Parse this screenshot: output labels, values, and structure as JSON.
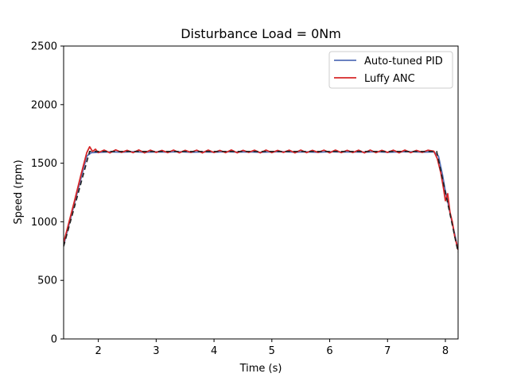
{
  "chart_data": {
    "type": "line",
    "title": "Disturbance Load = 0Nm",
    "xlabel": "Time (s)",
    "ylabel": "Speed (rpm)",
    "xlim": [
      1.4,
      8.22
    ],
    "ylim": [
      0,
      2500
    ],
    "xticks": [
      2,
      3,
      4,
      5,
      6,
      7,
      8
    ],
    "yticks": [
      0,
      500,
      1000,
      1500,
      2000,
      2500
    ],
    "grid": false,
    "legend_position": "top-right",
    "setpoint": {
      "x": [
        1.4,
        1.85,
        7.85,
        8.22
      ],
      "y": [
        790,
        1600,
        1600,
        740
      ]
    },
    "series": [
      {
        "name": "Auto-tuned PID",
        "color": "#5470b8",
        "x": [
          1.4,
          1.5,
          1.6,
          1.7,
          1.8,
          1.88,
          2.0,
          2.2,
          2.4,
          2.6,
          2.8,
          3.0,
          3.2,
          3.4,
          3.6,
          3.8,
          4.0,
          4.2,
          4.4,
          4.6,
          4.8,
          5.0,
          5.2,
          5.4,
          5.6,
          5.8,
          6.0,
          6.2,
          6.4,
          6.6,
          6.8,
          7.0,
          7.2,
          7.4,
          7.6,
          7.8,
          7.88,
          7.95,
          8.0,
          8.05,
          8.1,
          8.15,
          8.22
        ],
        "y": [
          800,
          990,
          1180,
          1370,
          1560,
          1590,
          1592,
          1597,
          1594,
          1598,
          1593,
          1597,
          1595,
          1598,
          1593,
          1597,
          1594,
          1598,
          1595,
          1597,
          1593,
          1596,
          1598,
          1594,
          1597,
          1593,
          1598,
          1595,
          1597,
          1594,
          1598,
          1593,
          1596,
          1598,
          1594,
          1597,
          1560,
          1400,
          1260,
          1150,
          1030,
          920,
          760
        ]
      },
      {
        "name": "Luffy ANC",
        "color": "#d62728",
        "x": [
          1.4,
          1.5,
          1.6,
          1.7,
          1.8,
          1.85,
          1.9,
          1.95,
          2.0,
          2.1,
          2.2,
          2.3,
          2.4,
          2.5,
          2.6,
          2.7,
          2.8,
          2.9,
          3.0,
          3.1,
          3.2,
          3.3,
          3.4,
          3.5,
          3.6,
          3.7,
          3.8,
          3.9,
          4.0,
          4.1,
          4.2,
          4.3,
          4.4,
          4.5,
          4.6,
          4.7,
          4.8,
          4.9,
          5.0,
          5.1,
          5.2,
          5.3,
          5.4,
          5.5,
          5.6,
          5.7,
          5.8,
          5.9,
          6.0,
          6.1,
          6.2,
          6.3,
          6.4,
          6.5,
          6.6,
          6.7,
          6.8,
          6.9,
          7.0,
          7.1,
          7.2,
          7.3,
          7.4,
          7.5,
          7.6,
          7.7,
          7.8,
          7.86,
          7.92,
          7.97,
          8.0,
          8.04,
          8.08,
          8.12,
          8.16,
          8.22
        ],
        "y": [
          820,
          1010,
          1200,
          1400,
          1590,
          1640,
          1600,
          1620,
          1590,
          1612,
          1588,
          1614,
          1592,
          1610,
          1590,
          1613,
          1588,
          1611,
          1592,
          1609,
          1590,
          1612,
          1589,
          1610,
          1592,
          1611,
          1588,
          1612,
          1591,
          1609,
          1590,
          1613,
          1589,
          1610,
          1592,
          1611,
          1588,
          1612,
          1590,
          1609,
          1592,
          1611,
          1588,
          1612,
          1590,
          1610,
          1592,
          1611,
          1589,
          1612,
          1590,
          1610,
          1591,
          1611,
          1588,
          1612,
          1590,
          1610,
          1592,
          1611,
          1589,
          1612,
          1590,
          1609,
          1592,
          1611,
          1602,
          1540,
          1420,
          1280,
          1180,
          1240,
          1080,
          1000,
          880,
          760
        ]
      }
    ]
  }
}
